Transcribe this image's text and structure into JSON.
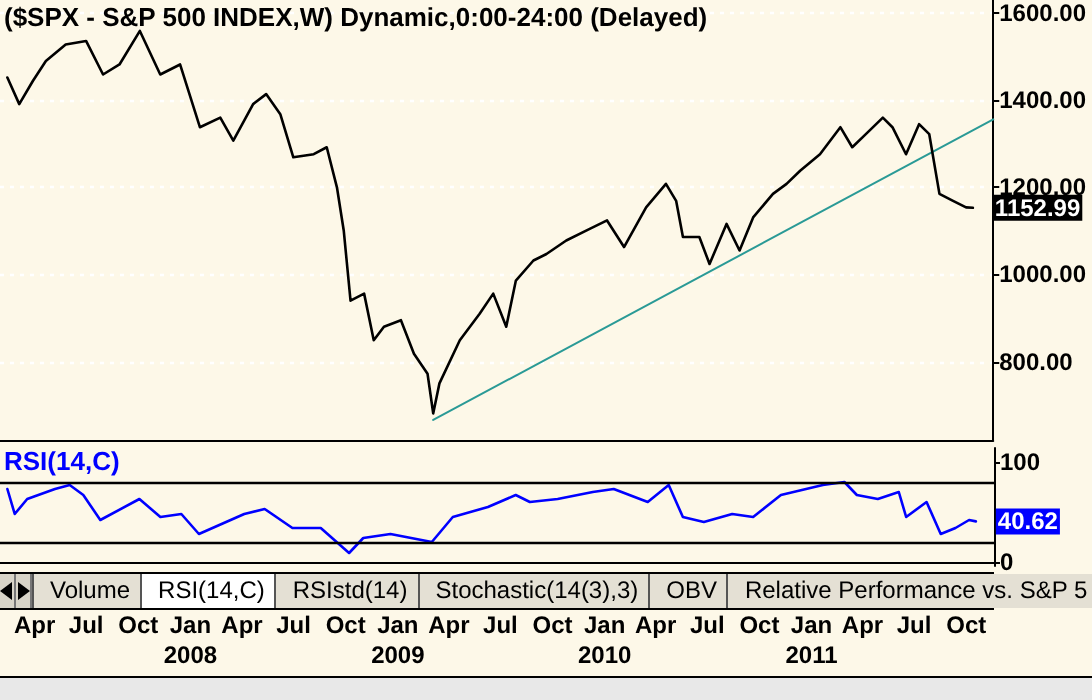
{
  "chart_data": [
    {
      "type": "line",
      "title": "($SPX - S&P 500 INDEX,W) Dynamic,0:00-24:00 (Delayed)",
      "xlim": [
        "2007-01-30",
        "2011-11-19"
      ],
      "ylim": [
        620,
        1630
      ],
      "yticks": [
        {
          "value": 800,
          "label": "800.00"
        },
        {
          "value": 1000,
          "label": "1000.00"
        },
        {
          "value": 1200,
          "label": "1200.00"
        },
        {
          "value": 1400,
          "label": "1400.00"
        },
        {
          "value": 1600,
          "label": "1600.00"
        }
      ],
      "grid": "y",
      "tick_labels": "y",
      "marker": "none",
      "line_style": "solid",
      "series": [
        {
          "color": "#000000",
          "x": [
            "2007-02-12",
            "2007-03-05",
            "2007-03-29",
            "2007-04-21",
            "2007-05-26",
            "2007-07-01",
            "2007-07-31",
            "2007-08-29",
            "2007-10-04",
            "2007-11-09",
            "2007-12-14",
            "2008-01-18",
            "2008-02-23",
            "2008-03-17",
            "2008-04-21",
            "2008-05-14",
            "2008-06-08",
            "2008-07-01",
            "2008-08-06",
            "2008-08-29",
            "2008-09-16",
            "2008-09-28",
            "2008-10-10",
            "2008-11-03",
            "2008-11-20",
            "2008-12-08",
            "2009-01-07",
            "2009-01-30",
            "2009-02-23",
            "2009-03-05",
            "2009-03-16",
            "2009-04-21",
            "2009-05-26",
            "2009-06-19",
            "2009-07-12",
            "2009-07-29",
            "2009-08-29",
            "2009-09-21",
            "2009-10-26",
            "2009-12-01",
            "2010-01-06",
            "2010-02-05",
            "2010-03-16",
            "2010-04-20",
            "2010-05-08",
            "2010-05-20",
            "2010-06-18",
            "2010-07-06",
            "2010-08-05",
            "2010-08-28",
            "2010-09-21",
            "2010-10-26",
            "2010-11-19",
            "2010-12-13",
            "2011-01-17",
            "2011-02-22",
            "2011-03-15",
            "2011-04-08",
            "2011-05-08",
            "2011-05-25",
            "2011-06-18",
            "2011-07-11",
            "2011-07-29",
            "2011-08-16",
            "2011-09-09",
            "2011-10-02",
            "2011-10-14"
          ],
          "values": [
            1452,
            1391,
            1444,
            1490,
            1528,
            1536,
            1459,
            1482,
            1559,
            1459,
            1482,
            1338,
            1360,
            1307,
            1391,
            1414,
            1368,
            1269,
            1276,
            1292,
            1200,
            1101,
            940,
            956,
            849,
            880,
            895,
            818,
            772,
            681,
            750,
            849,
            910,
            956,
            880,
            986,
            1032,
            1047,
            1078,
            1101,
            1124,
            1063,
            1154,
            1208,
            1169,
            1086,
            1086,
            1024,
            1116,
            1055,
            1131,
            1185,
            1208,
            1238,
            1276,
            1338,
            1292,
            1322,
            1360,
            1338,
            1276,
            1345,
            1322,
            1185,
            1169,
            1154,
            1152.99
          ],
          "value_labels": [
            null,
            null,
            null,
            null,
            null,
            null,
            null,
            null,
            null,
            null,
            null,
            null,
            null,
            null,
            null,
            null,
            null,
            null,
            null,
            null,
            null,
            null,
            null,
            null,
            null,
            null,
            null,
            null,
            null,
            null,
            null,
            null,
            null,
            null,
            null,
            null,
            null,
            null,
            null,
            null,
            null,
            null,
            null,
            null,
            null,
            null,
            null,
            null,
            null,
            null,
            null,
            null,
            null,
            null,
            null,
            null,
            null,
            null,
            null,
            null,
            null,
            null,
            null,
            null,
            null,
            null,
            "1152.99"
          ]
        },
        {
          "color": "#2a9a96",
          "x": [
            "2009-03-05",
            "2011-11-19"
          ],
          "values": [
            666,
            1356
          ]
        }
      ]
    },
    {
      "type": "line",
      "title": "RSI(14,C)",
      "xlim": [
        "2007-01-30",
        "2011-11-19"
      ],
      "ylim": [
        -4,
        114
      ],
      "yticks": [
        0,
        100
      ],
      "xticks": [
        {
          "value": "2007-04",
          "label": "Apr"
        },
        {
          "value": "2007-07",
          "label": "Jul"
        },
        {
          "value": "2007-10",
          "label": "Oct"
        },
        {
          "value": "2008-01",
          "label": "Jan\n2008"
        },
        {
          "value": "2008-04",
          "label": "Apr"
        },
        {
          "value": "2008-07",
          "label": "Jul"
        },
        {
          "value": "2008-10",
          "label": "Oct"
        },
        {
          "value": "2009-01",
          "label": "Jan\n2009"
        },
        {
          "value": "2009-04",
          "label": "Apr"
        },
        {
          "value": "2009-07",
          "label": "Jul"
        },
        {
          "value": "2009-10",
          "label": "Oct"
        },
        {
          "value": "2010-01",
          "label": "Jan\n2010"
        },
        {
          "value": "2010-04",
          "label": "Apr"
        },
        {
          "value": "2010-07",
          "label": "Jul"
        },
        {
          "value": "2010-10",
          "label": "Oct"
        },
        {
          "value": "2011-01",
          "label": "Jan\n2011"
        },
        {
          "value": "2011-04",
          "label": "Apr"
        },
        {
          "value": "2011-07",
          "label": "Jul"
        },
        {
          "value": "2011-10",
          "label": "Oct"
        }
      ],
      "grid": false,
      "marker": "none",
      "line_style": "solid",
      "ref_lines": [
        {
          "axis": "y",
          "value": 80,
          "color": "#000000"
        },
        {
          "axis": "y",
          "value": 20,
          "color": "#000000"
        }
      ],
      "annotations": [
        "Volume",
        "RSI(14,C)",
        "RSIstd(14)",
        "Stochastic(14(3),3)",
        "OBV",
        "Relative Performance vs. S&P 5"
      ],
      "series": [
        {
          "color": "#0000ff",
          "x": [
            "2007-02-12",
            "2007-02-25",
            "2007-03-19",
            "2007-05-07",
            "2007-06-02",
            "2007-06-26",
            "2007-07-26",
            "2007-10-03",
            "2007-11-09",
            "2007-12-16",
            "2008-01-16",
            "2008-04-05",
            "2008-05-11",
            "2008-06-29",
            "2008-08-18",
            "2008-10-07",
            "2008-11-01",
            "2008-12-19",
            "2009-03-02",
            "2009-04-08",
            "2009-06-09",
            "2009-07-28",
            "2009-08-22",
            "2009-10-10",
            "2009-12-11",
            "2010-01-17",
            "2010-03-18",
            "2010-04-24",
            "2010-05-19",
            "2010-06-25",
            "2010-08-14",
            "2010-09-20",
            "2010-11-08",
            "2011-01-21",
            "2011-02-28",
            "2011-03-22",
            "2011-04-28",
            "2011-06-04",
            "2011-06-17",
            "2011-07-23",
            "2011-08-17",
            "2011-09-12",
            "2011-10-06",
            "2011-10-18"
          ],
          "values": [
            73,
            48,
            63,
            73,
            77,
            67,
            42,
            63,
            45,
            48,
            28,
            48,
            53,
            34,
            34,
            9,
            24,
            28,
            20,
            45,
            55,
            67,
            60,
            63,
            70,
            73,
            60,
            77,
            45,
            40,
            48,
            45,
            67,
            77,
            80,
            67,
            63,
            70,
            45,
            60,
            28,
            34,
            42,
            40.62
          ],
          "value_labels": [
            null,
            null,
            null,
            null,
            null,
            null,
            null,
            null,
            null,
            null,
            null,
            null,
            null,
            null,
            null,
            null,
            null,
            null,
            null,
            null,
            null,
            null,
            null,
            null,
            null,
            null,
            null,
            null,
            null,
            null,
            null,
            null,
            null,
            null,
            null,
            null,
            null,
            null,
            null,
            null,
            null,
            null,
            null,
            "40.62"
          ]
        }
      ]
    }
  ]
}
